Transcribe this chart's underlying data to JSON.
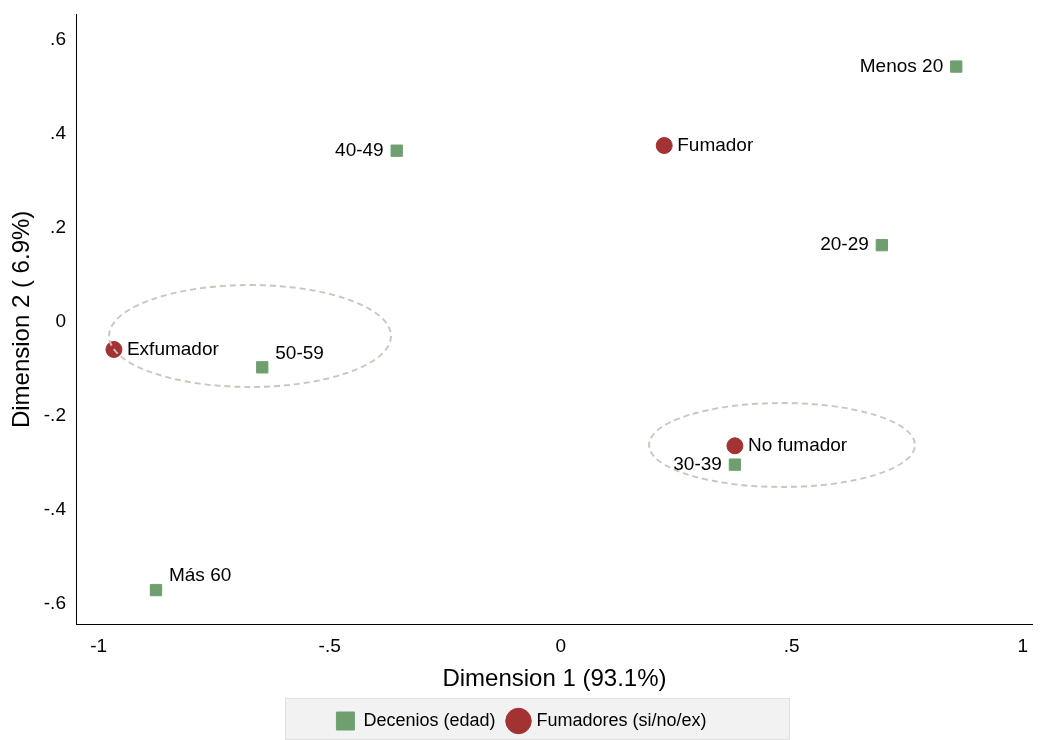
{
  "chart_data": {
    "type": "scatter",
    "xlabel": "Dimension 1 (93.1%)",
    "ylabel": "Dimension 2 ( 6.9%)",
    "xlim": [
      -1.047,
      1.02
    ],
    "ylim": [
      -0.643,
      0.655
    ],
    "xticks": [
      {
        "value": -1,
        "label": "-1"
      },
      {
        "value": -0.5,
        "label": "-.5"
      },
      0,
      {
        "value": 0.5,
        "label": ".5"
      },
      1
    ],
    "yticks": [
      {
        "value": -0.6,
        "label": "-.6"
      },
      {
        "value": -0.4,
        "label": "-.4"
      },
      {
        "value": -0.2,
        "label": "-.2"
      },
      0,
      {
        "value": 0.2,
        "label": ".2"
      },
      {
        "value": 0.4,
        "label": ".4"
      },
      {
        "value": 0.6,
        "label": ".6"
      }
    ],
    "grid": false,
    "legend": "bottom",
    "series": [
      {
        "name": "Decenios (edad)",
        "color": "#6f9f6f",
        "marker": "square",
        "x": [
          0.856,
          0.695,
          0.377,
          -0.355,
          -0.646,
          -0.876
        ],
        "values": [
          0.544,
          0.164,
          -0.303,
          0.365,
          -0.096,
          -0.57
        ]
      },
      {
        "name": "Fumadores (si/no/ex)",
        "color": "#a33333",
        "marker": "circle",
        "x": [
          0.224,
          0.377,
          -0.967
        ],
        "values": [
          0.376,
          -0.263,
          -0.058
        ]
      }
    ],
    "annotations": [
      {
        "text": "Menos 20",
        "x": 0.856,
        "y": 0.544
      },
      {
        "text": "20-29",
        "x": 0.695,
        "y": 0.164
      },
      {
        "text": "30-39",
        "x": 0.377,
        "y": -0.303
      },
      {
        "text": "40-49",
        "x": -0.355,
        "y": 0.365
      },
      {
        "text": "50-59",
        "x": -0.646,
        "y": -0.096
      },
      {
        "text": "Más 60",
        "x": -0.876,
        "y": -0.57
      },
      {
        "text": "Fumador",
        "x": 0.224,
        "y": 0.376
      },
      {
        "text": "No fumador",
        "x": 0.377,
        "y": -0.263
      },
      {
        "text": "Exfumador",
        "x": -0.967,
        "y": -0.058
      }
    ]
  }
}
